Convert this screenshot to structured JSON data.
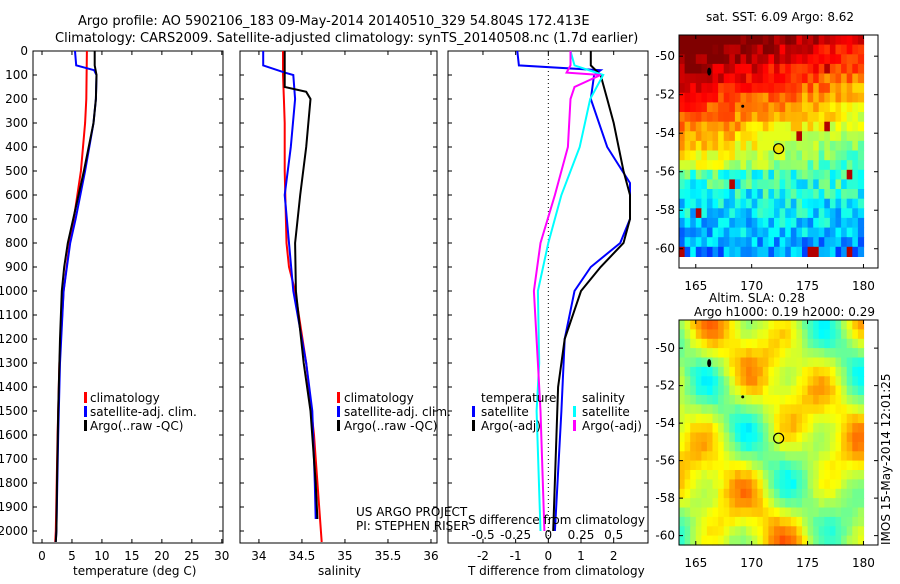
{
  "title": {
    "line1": "Argo profile: AO 5902106_183 09-May-2014 20140510_329 54.804S 172.413E",
    "line2": "Climatology: CARS2009. Satellite-adjusted climatology: synTS_20140508.nc (1.7d earlier)"
  },
  "colors": {
    "climatology": "#ff0000",
    "satellite": "#0000ff",
    "argo": "#000000",
    "sal_satellite": "#00ffff",
    "sal_argo": "#ff00ff"
  },
  "chart_data": [
    {
      "type": "line",
      "id": "temperature",
      "xlabel": "temperature (deg C)",
      "ylabel": "",
      "xlim": [
        -1.5,
        30.2
      ],
      "ylim": [
        2050,
        0
      ],
      "xticks": [
        "0",
        "5",
        "10",
        "15",
        "20",
        "25",
        "30"
      ],
      "xtick_values": [
        0,
        5,
        10,
        15,
        20,
        25,
        30
      ],
      "yticks": [
        "0",
        "100",
        "200",
        "300",
        "400",
        "500",
        "600",
        "700",
        "800",
        "900",
        "1000",
        "1100",
        "1200",
        "1300",
        "1400",
        "1500",
        "1600",
        "1700",
        "1800",
        "1900",
        "2000"
      ],
      "legend": [
        "climatology",
        "satellite-adj. clim.",
        "Argo(..raw -QC)"
      ],
      "series": [
        {
          "name": "climatology",
          "color": "#ff0000",
          "depth": [
            0,
            200,
            300,
            500,
            700,
            800,
            1000,
            1300,
            1600,
            2000,
            2050
          ],
          "values": [
            7.5,
            7.4,
            7.2,
            6.5,
            5.3,
            4.6,
            3.6,
            2.9,
            2.6,
            2.3,
            2.2
          ]
        },
        {
          "name": "satellite-adj. clim.",
          "color": "#0000ff",
          "depth": [
            0,
            60,
            80,
            100,
            200,
            300,
            500,
            700,
            800,
            1000,
            1300,
            1600,
            2000,
            2050
          ],
          "values": [
            5.5,
            5.7,
            8.7,
            9.1,
            9.0,
            8.6,
            7.2,
            5.6,
            4.7,
            3.6,
            3.0,
            2.7,
            2.4,
            2.3
          ]
        },
        {
          "name": "Argo(..raw -QC)",
          "color": "#000000",
          "depth": [
            0,
            60,
            100,
            200,
            300,
            500,
            700,
            800,
            900,
            1000,
            1200,
            1500,
            1800,
            2000,
            2050
          ],
          "values": [
            8.8,
            8.8,
            9.1,
            9.0,
            8.6,
            7.0,
            5.2,
            4.3,
            3.7,
            3.3,
            3.0,
            2.7,
            2.5,
            2.4,
            2.3
          ]
        }
      ]
    },
    {
      "type": "line",
      "id": "salinity",
      "xlabel": "salinity",
      "xlim": [
        33.78,
        36.07
      ],
      "ylim": [
        2050,
        0
      ],
      "xticks": [
        "34",
        "34.5",
        "35",
        "35.5",
        "36"
      ],
      "xtick_values": [
        34,
        34.5,
        35,
        35.5,
        36
      ],
      "legend": [
        "climatology",
        "satellite-adj. clim.",
        "Argo(..raw -QC)"
      ],
      "annotation": [
        "US ARGO PROJECT",
        "PI: STEPHEN RISER"
      ],
      "series": [
        {
          "name": "climatology",
          "color": "#ff0000",
          "depth": [
            0,
            100,
            200,
            300,
            500,
            800,
            900,
            1000,
            1300,
            1600,
            2000,
            2050
          ],
          "values": [
            34.28,
            34.28,
            34.29,
            34.3,
            34.3,
            34.32,
            34.35,
            34.42,
            34.55,
            34.64,
            34.72,
            34.73
          ]
        },
        {
          "name": "satellite-adj. clim.",
          "color": "#0000ff",
          "depth": [
            0,
            60,
            90,
            100,
            200,
            400,
            600,
            800,
            1000,
            1300,
            1500,
            1800,
            1950
          ],
          "values": [
            34.05,
            34.05,
            34.3,
            34.4,
            34.42,
            34.37,
            34.3,
            34.35,
            34.4,
            34.55,
            34.62,
            34.65,
            34.66
          ]
        },
        {
          "name": "Argo(..raw -QC)",
          "color": "#000000",
          "depth": [
            0,
            150,
            170,
            200,
            400,
            600,
            800,
            1000,
            1300,
            1500,
            1800,
            1950
          ],
          "values": [
            34.3,
            34.3,
            34.55,
            34.6,
            34.55,
            34.48,
            34.42,
            34.43,
            34.52,
            34.6,
            34.66,
            34.68
          ]
        }
      ]
    },
    {
      "type": "line",
      "id": "difference",
      "xlabel": "T difference from climatology",
      "xlabel_top": "S difference from climatology",
      "xlim": [
        -3.07,
        3.05
      ],
      "ylim": [
        2050,
        0
      ],
      "xticks": [
        "-2",
        "-1",
        "0",
        "1",
        "2"
      ],
      "xtick_values": [
        -2,
        -1,
        0,
        1,
        2
      ],
      "xticks_top": [
        "-0.5",
        "-0.25",
        "0",
        "0.25",
        "0.5"
      ],
      "xtick_top_values": [
        -0.5,
        -0.25,
        0,
        0.25,
        0.5
      ],
      "legend_titles": [
        "temperature",
        "salinity"
      ],
      "legend": [
        "satellite",
        "Argo(-adj)",
        "satellite",
        "Argo(-adj)"
      ],
      "series": [
        {
          "name": "temperature satellite",
          "color": "#0000ff",
          "units": "T",
          "depth": [
            0,
            60,
            80,
            100,
            200,
            400,
            550,
            700,
            800,
            900,
            1000,
            1200,
            1500,
            2000
          ],
          "values": [
            -0.95,
            -0.9,
            1.6,
            1.4,
            1.3,
            1.8,
            2.5,
            2.5,
            2.2,
            1.3,
            0.8,
            0.5,
            0.4,
            0.2
          ]
        },
        {
          "name": "temperature Argo(-adj)",
          "color": "#000000",
          "units": "T",
          "depth": [
            0,
            60,
            100,
            200,
            300,
            500,
            600,
            700,
            800,
            900,
            1000,
            1200,
            1400,
            2000
          ],
          "values": [
            1.3,
            1.3,
            1.6,
            1.8,
            2.0,
            2.3,
            2.5,
            2.5,
            2.3,
            1.6,
            1.0,
            0.5,
            0.3,
            0.15
          ]
        },
        {
          "name": "salinity satellite",
          "color": "#00ffff",
          "units": "S",
          "depth": [
            0,
            60,
            100,
            200,
            400,
            600,
            800,
            1000,
            1300,
            1500,
            2000
          ],
          "values": [
            0.17,
            0.2,
            0.42,
            0.32,
            0.24,
            0.1,
            0.0,
            -0.08,
            -0.07,
            -0.09,
            -0.06
          ]
        },
        {
          "name": "salinity Argo(-adj)",
          "color": "#ff00ff",
          "units": "S",
          "depth": [
            0,
            60,
            90,
            100,
            150,
            200,
            400,
            600,
            800,
            1000,
            1300,
            1500,
            2000
          ],
          "values": [
            0.17,
            0.17,
            0.14,
            0.4,
            0.2,
            0.17,
            0.15,
            0.05,
            -0.06,
            -0.11,
            -0.08,
            -0.06,
            -0.03
          ]
        }
      ]
    },
    {
      "type": "heatmap",
      "id": "sst-map",
      "title": "sat. SST: 6.09 Argo: 8.62",
      "xlim": [
        163.5,
        181.3
      ],
      "ylim": [
        -61,
        -48.9
      ],
      "xticks": [
        "165",
        "170",
        "175",
        "180"
      ],
      "xtick_values": [
        165,
        170,
        175,
        180
      ],
      "yticks": [
        "-50",
        "-52",
        "-54",
        "-56",
        "-58",
        "-60"
      ],
      "ytick_values": [
        -50,
        -52,
        -54,
        -56,
        -58,
        -60
      ],
      "float_position": {
        "lon": 172.413,
        "lat": -54.804
      }
    },
    {
      "type": "heatmap",
      "id": "sla-map",
      "title": "Altim. SLA: 0.28",
      "subtitle": "Argo h1000: 0.19 h2000: 0.29",
      "xlim": [
        163.5,
        181.3
      ],
      "ylim": [
        -60.5,
        -48.5
      ],
      "xticks": [
        "165",
        "170",
        "175",
        "180"
      ],
      "xtick_values": [
        165,
        170,
        175,
        180
      ],
      "yticks": [
        "-50",
        "-52",
        "-54",
        "-56",
        "-58",
        "-60"
      ],
      "ytick_values": [
        -50,
        -52,
        -54,
        -56,
        -58,
        -60
      ],
      "float_position": {
        "lon": 172.413,
        "lat": -54.804
      }
    }
  ],
  "stamp": "IMOS 15-May-2014 12:01:25"
}
